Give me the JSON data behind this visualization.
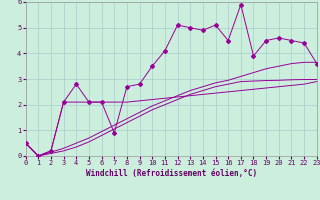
{
  "x": [
    0,
    1,
    2,
    3,
    4,
    5,
    6,
    7,
    8,
    9,
    10,
    11,
    12,
    13,
    14,
    15,
    16,
    17,
    18,
    19,
    20,
    21,
    22,
    23
  ],
  "y_scatter": [
    0.5,
    0.0,
    0.2,
    2.1,
    2.8,
    2.1,
    2.1,
    0.9,
    2.7,
    2.8,
    3.5,
    4.1,
    5.1,
    5.0,
    4.9,
    5.1,
    4.5,
    5.9,
    3.9,
    4.5,
    4.6,
    4.5,
    4.4,
    3.6
  ],
  "y_line1": [
    0.5,
    0.0,
    0.2,
    2.1,
    2.1,
    2.1,
    2.1,
    2.1,
    2.1,
    2.15,
    2.2,
    2.25,
    2.3,
    2.35,
    2.4,
    2.45,
    2.5,
    2.55,
    2.6,
    2.65,
    2.7,
    2.75,
    2.8,
    2.9
  ],
  "y_line2": [
    0.5,
    0.0,
    0.15,
    0.3,
    0.5,
    0.7,
    0.95,
    1.2,
    1.45,
    1.7,
    1.95,
    2.15,
    2.35,
    2.55,
    2.7,
    2.85,
    2.95,
    3.1,
    3.25,
    3.4,
    3.5,
    3.6,
    3.65,
    3.65
  ],
  "y_line3": [
    0.5,
    0.0,
    0.1,
    0.2,
    0.35,
    0.55,
    0.8,
    1.05,
    1.3,
    1.55,
    1.8,
    2.0,
    2.2,
    2.4,
    2.55,
    2.7,
    2.8,
    2.9,
    2.92,
    2.94,
    2.95,
    2.97,
    2.98,
    2.98
  ],
  "color": "#990099",
  "bg_color": "#cceedd",
  "grid_color": "#aacccc",
  "xlabel": "Windchill (Refroidissement éolien,°C)",
  "xlabel_color": "#660066",
  "ylim": [
    0,
    6
  ],
  "xlim": [
    0,
    23
  ],
  "yticks": [
    0,
    1,
    2,
    3,
    4,
    5,
    6
  ],
  "xticks": [
    0,
    1,
    2,
    3,
    4,
    5,
    6,
    7,
    8,
    9,
    10,
    11,
    12,
    13,
    14,
    15,
    16,
    17,
    18,
    19,
    20,
    21,
    22,
    23
  ],
  "tick_fontsize": 5.0,
  "xlabel_fontsize": 5.5
}
